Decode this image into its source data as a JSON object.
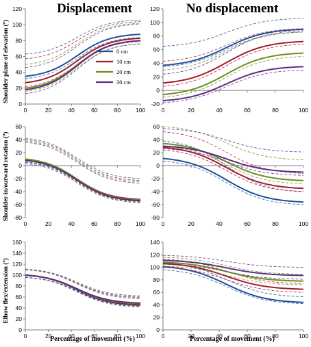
{
  "chart_data": {
    "type": "line",
    "column_titles": [
      "Displacement",
      "No displacement"
    ],
    "x_axis_label": "Percentage of movement (%)",
    "row_ylabels": [
      "Shoulder plane of elevation (º)",
      "Shoulder in/outward rotation (º)",
      "Elbow flex/extension (º)"
    ],
    "legend": {
      "location": "top-left panel, center-right",
      "entries": [
        {
          "name": "0 cm",
          "color": "#1f4e99"
        },
        {
          "name": "10 cm",
          "color": "#a6192e"
        },
        {
          "name": "20 cm",
          "color": "#6a8f1e"
        },
        {
          "name": "30 cm",
          "color": "#5c2d82"
        }
      ]
    },
    "note": "Solid lines are mean curves; dashed lines of the same color are upper/lower bands.",
    "x_ticks": [
      0,
      20,
      40,
      60,
      80,
      100
    ],
    "panels": [
      {
        "id": "p11",
        "row": 0,
        "col": 0,
        "ylim": [
          0,
          120
        ],
        "yticks": [
          0,
          20,
          40,
          60,
          80,
          100,
          120
        ],
        "series": [
          {
            "name": "0 cm",
            "start": 35,
            "end": 88,
            "upper": [
              63,
              106
            ],
            "lower": [
              32,
              84
            ]
          },
          {
            "name": "10 cm",
            "start": 27,
            "end": 83,
            "upper": [
              57,
              104
            ],
            "lower": [
              22,
              79
            ]
          },
          {
            "name": "20 cm",
            "start": 20,
            "end": 80,
            "upper": [
              50,
              102
            ],
            "lower": [
              16,
              76
            ]
          },
          {
            "name": "30 cm",
            "start": 18,
            "end": 80,
            "upper": [
              46,
              101
            ],
            "lower": [
              13,
              76
            ]
          }
        ]
      },
      {
        "id": "p12",
        "row": 0,
        "col": 1,
        "ylim": [
          -20,
          120
        ],
        "yticks": [
          -20,
          0,
          20,
          40,
          60,
          80,
          100,
          120
        ],
        "series": [
          {
            "name": "0 cm",
            "start": 37,
            "end": 90,
            "upper": [
              65,
              106
            ],
            "lower": [
              35,
              86
            ]
          },
          {
            "name": "10 cm",
            "start": 11,
            "end": 72,
            "upper": [
              43,
              91
            ],
            "lower": [
              6,
              68
            ]
          },
          {
            "name": "20 cm",
            "start": -6,
            "end": 55,
            "upper": [
              30,
              86
            ],
            "lower": [
              -10,
              50
            ]
          },
          {
            "name": "30 cm",
            "start": -15,
            "end": 35,
            "upper": [
              24,
              88
            ],
            "lower": [
              -18,
              30
            ]
          }
        ]
      },
      {
        "id": "p21",
        "row": 1,
        "col": 0,
        "ylim": [
          -80,
          60
        ],
        "yticks": [
          -80,
          -60,
          -40,
          -20,
          0,
          20,
          40,
          60
        ],
        "series": [
          {
            "name": "0 cm",
            "start": 10,
            "end": -53,
            "upper": [
              42,
              -20
            ],
            "lower": [
              6,
              -55
            ]
          },
          {
            "name": "10 cm",
            "start": 9,
            "end": -52,
            "upper": [
              40,
              -23
            ],
            "lower": [
              5,
              -55
            ]
          },
          {
            "name": "20 cm",
            "start": 10,
            "end": -53,
            "upper": [
              38,
              -25
            ],
            "lower": [
              5,
              -56
            ]
          },
          {
            "name": "30 cm",
            "start": 8,
            "end": -54,
            "upper": [
              36,
              -27
            ],
            "lower": [
              3,
              -57
            ]
          }
        ]
      },
      {
        "id": "p22",
        "row": 1,
        "col": 1,
        "ylim": [
          -80,
          60
        ],
        "yticks": [
          -80,
          -60,
          -40,
          -20,
          0,
          20,
          40,
          60
        ],
        "series": [
          {
            "name": "0 cm",
            "start": 11,
            "end": -56,
            "upper": [
              38,
              -40
            ],
            "lower": [
              7,
              -60
            ]
          },
          {
            "name": "10 cm",
            "start": 28,
            "end": -35,
            "upper": [
              52,
              -12
            ],
            "lower": [
              24,
              -40
            ]
          },
          {
            "name": "20 cm",
            "start": 34,
            "end": -23,
            "upper": [
              60,
              9
            ],
            "lower": [
              30,
              -28
            ]
          },
          {
            "name": "30 cm",
            "start": 30,
            "end": -10,
            "upper": [
              57,
              21
            ],
            "lower": [
              26,
              -15
            ]
          }
        ]
      },
      {
        "id": "p31",
        "row": 2,
        "col": 0,
        "ylim": [
          0,
          160
        ],
        "yticks": [
          0,
          20,
          40,
          60,
          80,
          100,
          120,
          140,
          160
        ],
        "series": [
          {
            "name": "0 cm",
            "start": 100,
            "end": 45,
            "upper": [
              110,
              57
            ],
            "lower": [
              96,
              42
            ]
          },
          {
            "name": "10 cm",
            "start": 100,
            "end": 47,
            "upper": [
              110,
              59
            ],
            "lower": [
              96,
              43
            ]
          },
          {
            "name": "20 cm",
            "start": 100,
            "end": 48,
            "upper": [
              110,
              60
            ],
            "lower": [
              96,
              44
            ]
          },
          {
            "name": "30 cm",
            "start": 100,
            "end": 49,
            "upper": [
              111,
              62
            ],
            "lower": [
              96,
              45
            ]
          }
        ]
      },
      {
        "id": "p32",
        "row": 2,
        "col": 1,
        "ylim": [
          0,
          140
        ],
        "yticks": [
          0,
          20,
          40,
          60,
          80,
          100,
          120,
          140
        ],
        "series": [
          {
            "name": "0 cm",
            "start": 101,
            "end": 44,
            "upper": [
              107,
              53
            ],
            "lower": [
              96,
              42
            ]
          },
          {
            "name": "10 cm",
            "start": 106,
            "end": 65,
            "upper": [
              113,
              74
            ],
            "lower": [
              100,
              60
            ]
          },
          {
            "name": "20 cm",
            "start": 108,
            "end": 78,
            "upper": [
              116,
              89
            ],
            "lower": [
              102,
              72
            ]
          },
          {
            "name": "30 cm",
            "start": 111,
            "end": 87,
            "upper": [
              119,
              100
            ],
            "lower": [
              105,
              81
            ]
          }
        ]
      }
    ]
  }
}
